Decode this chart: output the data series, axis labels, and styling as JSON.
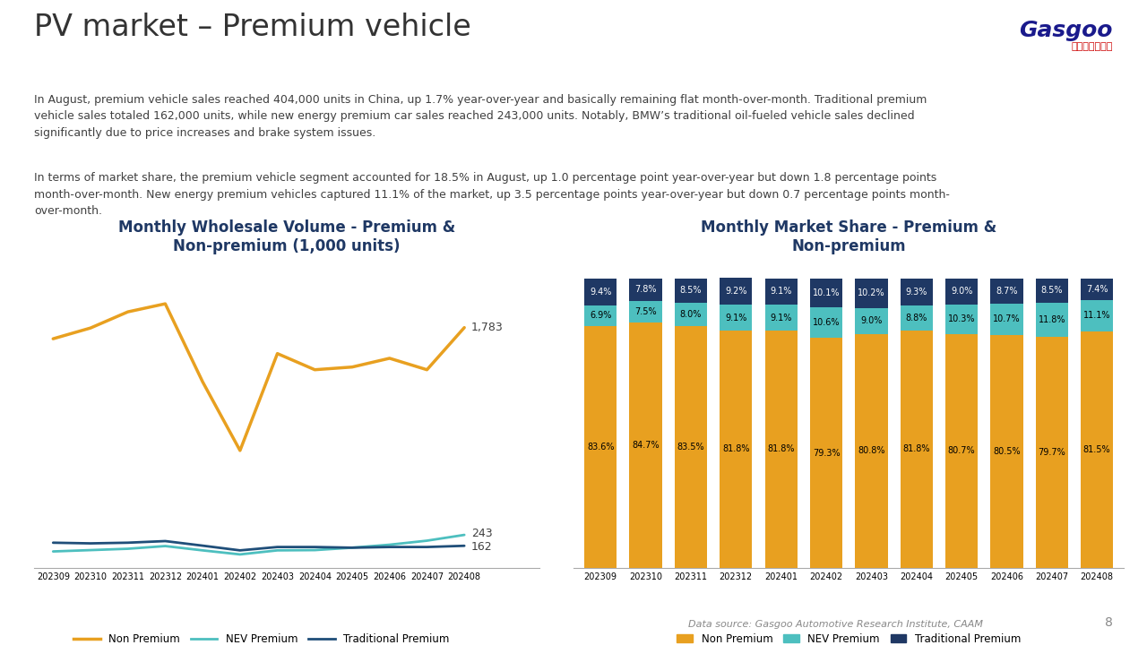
{
  "title": "PV market – Premium vehicle",
  "subtitle_para1": "In August, premium vehicle sales reached 404,000 units in China, up 1.7% year-over-year and basically remaining flat month-over-month. Traditional premium\nvehicle sales totaled 162,000 units, while new energy premium car sales reached 243,000 units. Notably, BMW’s traditional oil-fueled vehicle sales declined\nsignificantly due to price increases and brake system issues.",
  "subtitle_para2": "In terms of market share, the premium vehicle segment accounted for 18.5% in August, up 1.0 percentage point year-over-year but down 1.8 percentage points\nmonth-over-month. New energy premium vehicles captured 11.1% of the market, up 3.5 percentage points year-over-year but down 0.7 percentage points month-\nover-month.",
  "categories": [
    "202309",
    "202310",
    "202311",
    "202312",
    "202401",
    "202402",
    "202403",
    "202404",
    "202405",
    "202406",
    "202407",
    "202408"
  ],
  "line_chart": {
    "title": "Monthly Wholesale Volume - Premium &\nNon-premium (1,000 units)",
    "non_premium": [
      1700,
      1780,
      1900,
      1960,
      1380,
      870,
      1590,
      1470,
      1490,
      1555,
      1470,
      1783
    ],
    "nev_premium": [
      120,
      130,
      140,
      160,
      128,
      98,
      128,
      130,
      148,
      170,
      200,
      243
    ],
    "trad_premium": [
      185,
      180,
      185,
      197,
      163,
      128,
      153,
      153,
      148,
      153,
      153,
      162
    ],
    "non_premium_label": "1,783",
    "nev_premium_label": "243",
    "trad_premium_label": "162",
    "non_premium_color": "#E8A020",
    "nev_premium_color": "#4DBFBF",
    "trad_premium_color": "#1F4E79",
    "legend_labels": [
      "Non Premium",
      "NEV Premium",
      "Traditional Premium"
    ]
  },
  "bar_chart": {
    "title": "Monthly Market Share - Premium &\nNon-premium",
    "non_premium": [
      83.6,
      84.7,
      83.5,
      81.8,
      81.8,
      79.3,
      80.8,
      81.8,
      80.7,
      80.5,
      79.7,
      81.5
    ],
    "nev_premium": [
      6.9,
      7.5,
      8.0,
      9.1,
      9.1,
      10.6,
      9.0,
      8.8,
      10.3,
      10.7,
      11.8,
      11.1
    ],
    "trad_premium": [
      9.4,
      7.8,
      8.5,
      9.2,
      9.1,
      10.1,
      10.2,
      9.3,
      9.0,
      8.7,
      8.5,
      7.4
    ],
    "non_premium_color": "#E8A020",
    "nev_premium_color": "#4DBFBF",
    "trad_premium_color": "#1F3864",
    "legend_labels": [
      "Non Premium",
      "NEV Premium",
      "Traditional Premium"
    ]
  },
  "data_source": "Data source: Gasgoo Automotive Research Institute, CAAM",
  "page_num": "8",
  "background_color": "#FFFFFF",
  "title_color": "#333333",
  "text_color": "#404040",
  "chart_title_color": "#1F3864"
}
